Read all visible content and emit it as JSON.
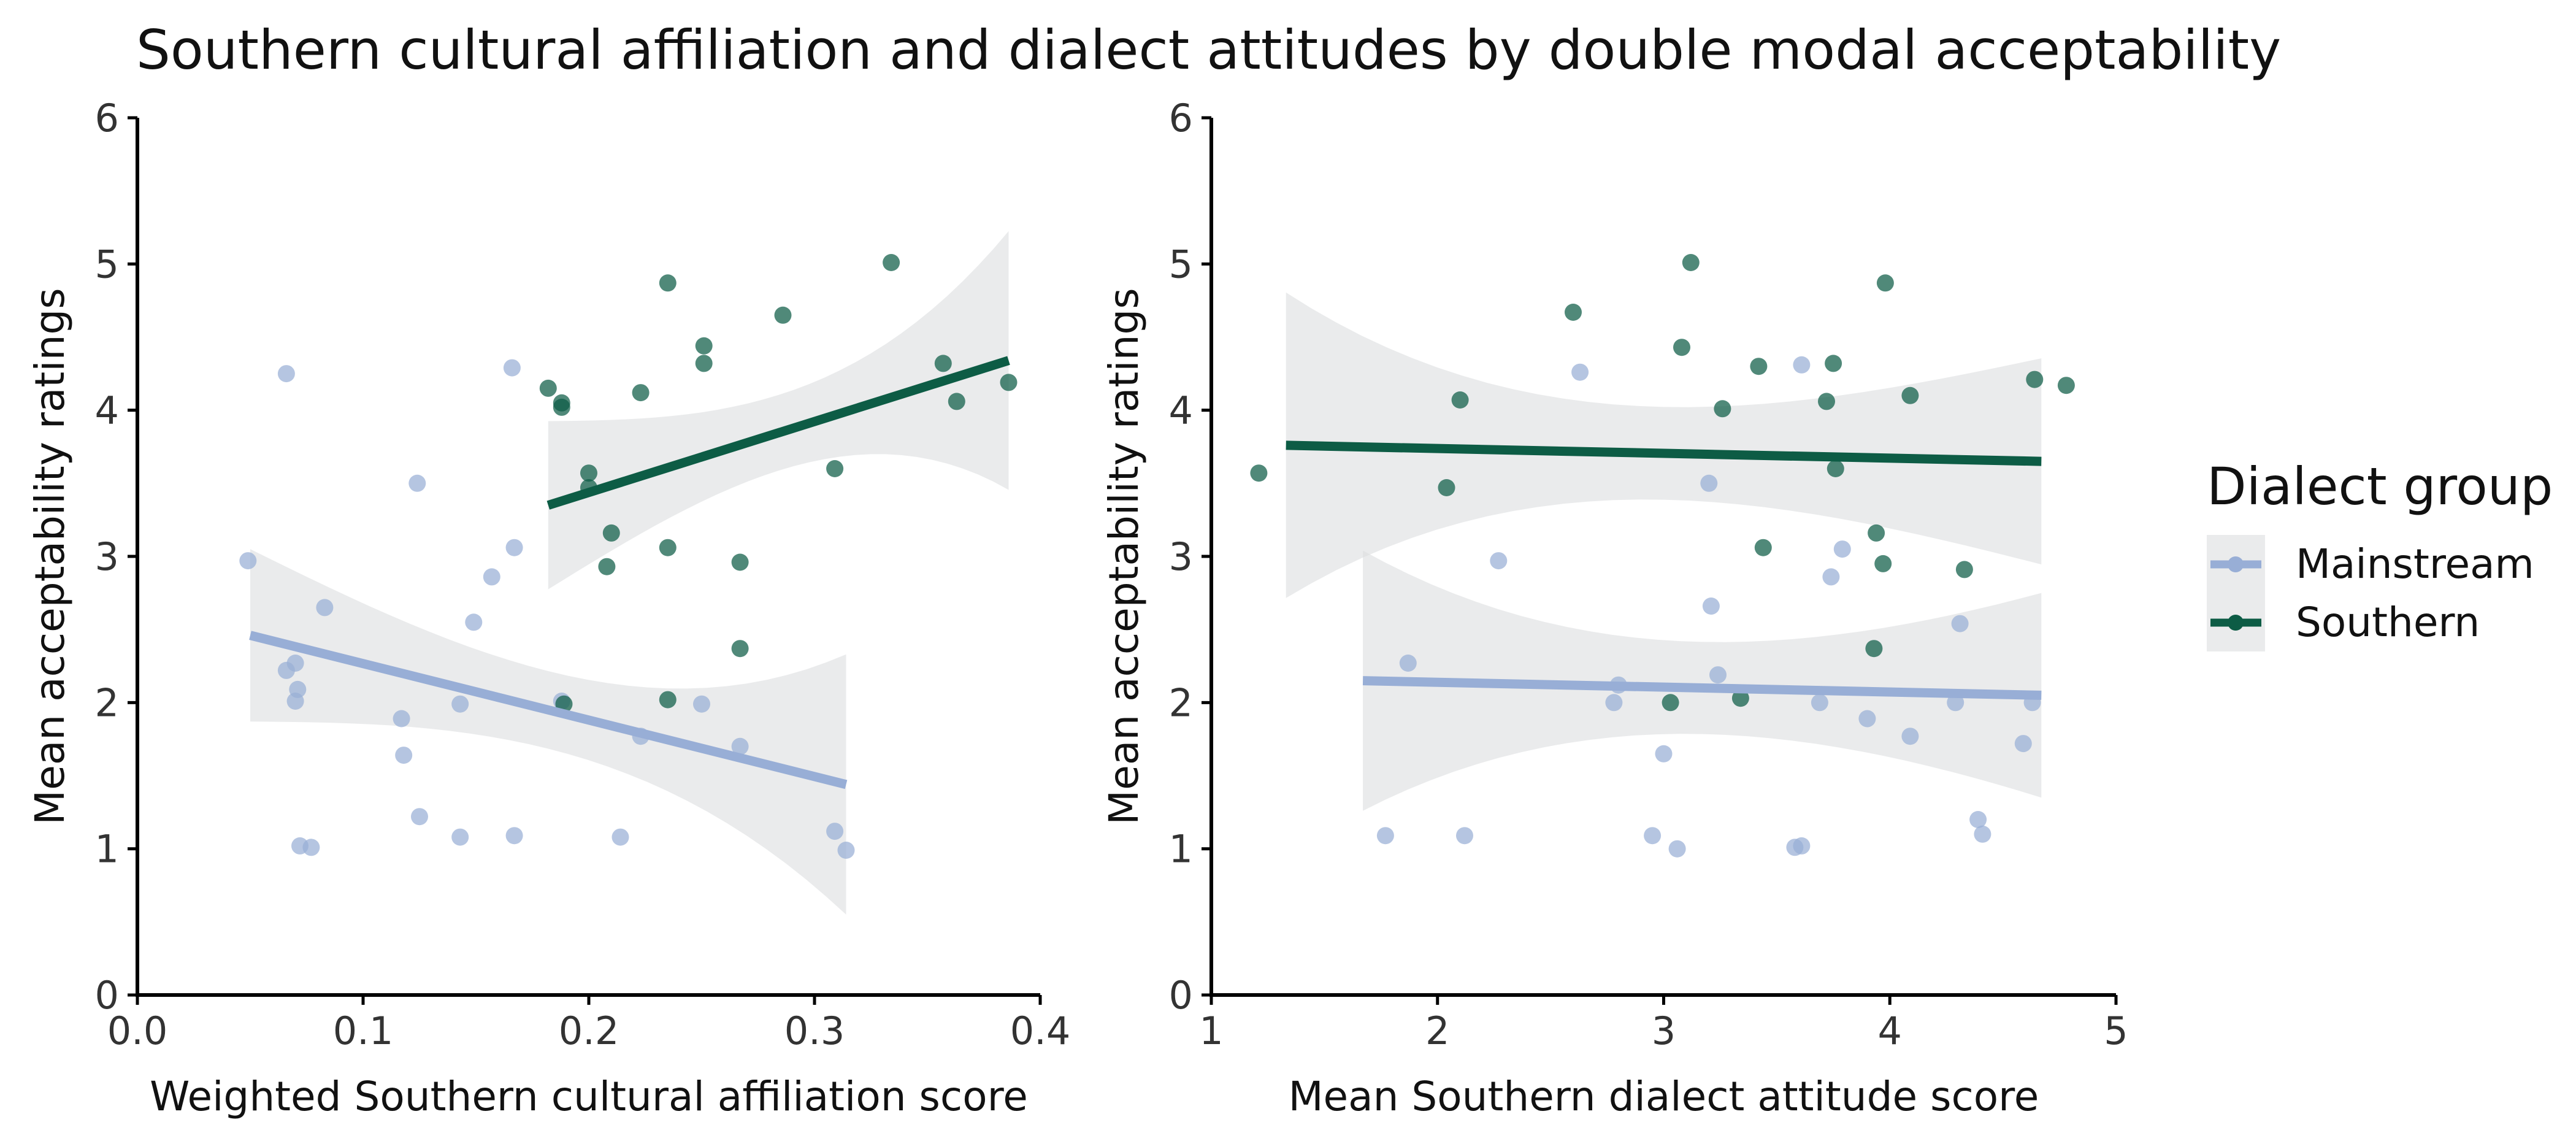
{
  "title": "Southern cultural affiliation and dialect attitudes by double modal acceptability",
  "legend": {
    "title": "Dialect group",
    "entries": [
      {
        "label": "Mainstream",
        "color": "#98aed6"
      },
      {
        "label": "Southern",
        "color": "#0d5c45"
      }
    ]
  },
  "chart_data": [
    {
      "type": "scatter",
      "xlabel": "Weighted Southern cultural affiliation score",
      "ylabel": "Mean acceptability ratings",
      "xlim": [
        0,
        0.4
      ],
      "ylim": [
        0,
        6
      ],
      "xticks": [
        "0.0",
        "0.1",
        "0.2",
        "0.3",
        "0.4"
      ],
      "yticks": [
        "0",
        "1",
        "2",
        "3",
        "4",
        "5",
        "6"
      ],
      "grid": false,
      "legend_position": "right",
      "series": [
        {
          "name": "Mainstream",
          "color": "#98aed6",
          "points": [
            [
              0.049,
              2.97
            ],
            [
              0.066,
              4.25
            ],
            [
              0.066,
              2.22
            ],
            [
              0.07,
              2.27
            ],
            [
              0.07,
              2.01
            ],
            [
              0.071,
              2.09
            ],
            [
              0.072,
              1.02
            ],
            [
              0.077,
              1.01
            ],
            [
              0.083,
              2.65
            ],
            [
              0.117,
              1.89
            ],
            [
              0.118,
              1.64
            ],
            [
              0.124,
              3.5
            ],
            [
              0.125,
              1.22
            ],
            [
              0.143,
              1.99
            ],
            [
              0.143,
              1.08
            ],
            [
              0.149,
              2.55
            ],
            [
              0.157,
              2.86
            ],
            [
              0.166,
              4.29
            ],
            [
              0.167,
              3.06
            ],
            [
              0.167,
              1.09
            ],
            [
              0.188,
              2.01
            ],
            [
              0.214,
              1.08
            ],
            [
              0.223,
              1.77
            ],
            [
              0.25,
              1.99
            ],
            [
              0.267,
              1.7
            ],
            [
              0.309,
              1.12
            ],
            [
              0.314,
              0.99
            ]
          ],
          "trend": {
            "x": [
              0.05,
              0.314
            ],
            "y": [
              2.46,
              1.44
            ],
            "ci_low": [
              1.87,
              0.55
            ],
            "ci_high": [
              3.05,
              2.33
            ]
          }
        },
        {
          "name": "Southern",
          "color": "#0d5c45",
          "points": [
            [
              0.182,
              4.15
            ],
            [
              0.188,
              4.05
            ],
            [
              0.188,
              4.02
            ],
            [
              0.189,
              1.99
            ],
            [
              0.2,
              3.57
            ],
            [
              0.2,
              3.47
            ],
            [
              0.208,
              2.93
            ],
            [
              0.21,
              3.16
            ],
            [
              0.223,
              4.12
            ],
            [
              0.235,
              4.87
            ],
            [
              0.235,
              3.06
            ],
            [
              0.235,
              2.02
            ],
            [
              0.251,
              4.44
            ],
            [
              0.251,
              4.32
            ],
            [
              0.267,
              2.96
            ],
            [
              0.267,
              2.37
            ],
            [
              0.286,
              4.65
            ],
            [
              0.309,
              3.6
            ],
            [
              0.334,
              5.01
            ],
            [
              0.357,
              4.32
            ],
            [
              0.363,
              4.06
            ],
            [
              0.386,
              4.19
            ]
          ],
          "trend": {
            "x": [
              0.182,
              0.386
            ],
            "y": [
              3.35,
              4.34
            ],
            "ci_low": [
              2.78,
              3.45
            ],
            "ci_high": [
              3.93,
              5.22
            ]
          }
        }
      ]
    },
    {
      "type": "scatter",
      "xlabel": "Mean Southern dialect attitude score",
      "ylabel": "Mean acceptability ratings",
      "xlim": [
        1,
        5
      ],
      "ylim": [
        0,
        6
      ],
      "xticks": [
        "1",
        "2",
        "3",
        "4",
        "5"
      ],
      "yticks": [
        "0",
        "1",
        "2",
        "3",
        "4",
        "5",
        "6"
      ],
      "grid": false,
      "legend_position": "right",
      "series": [
        {
          "name": "Mainstream",
          "color": "#98aed6",
          "points": [
            [
              1.77,
              1.09
            ],
            [
              1.87,
              2.27
            ],
            [
              2.12,
              1.09
            ],
            [
              2.27,
              2.97
            ],
            [
              2.63,
              4.26
            ],
            [
              2.78,
              2.0
            ],
            [
              2.8,
              2.12
            ],
            [
              2.95,
              1.09
            ],
            [
              3.0,
              1.65
            ],
            [
              3.06,
              1.0
            ],
            [
              3.2,
              3.5
            ],
            [
              3.21,
              2.66
            ],
            [
              3.24,
              2.19
            ],
            [
              3.58,
              1.01
            ],
            [
              3.61,
              1.02
            ],
            [
              3.61,
              4.31
            ],
            [
              3.69,
              2.0
            ],
            [
              3.74,
              2.86
            ],
            [
              3.79,
              3.05
            ],
            [
              3.9,
              1.89
            ],
            [
              4.09,
              1.77
            ],
            [
              4.29,
              2.0
            ],
            [
              4.31,
              2.54
            ],
            [
              4.39,
              1.2
            ],
            [
              4.41,
              1.1
            ],
            [
              4.59,
              1.72
            ],
            [
              4.63,
              2.0
            ]
          ],
          "trend": {
            "x": [
              1.67,
              4.67
            ],
            "y": [
              2.15,
              2.05
            ],
            "ci_low": [
              1.26,
              1.35
            ],
            "ci_high": [
              3.04,
              2.75
            ]
          }
        },
        {
          "name": "Southern",
          "color": "#0d5c45",
          "points": [
            [
              1.21,
              3.57
            ],
            [
              2.04,
              3.47
            ],
            [
              2.1,
              4.07
            ],
            [
              2.6,
              4.67
            ],
            [
              3.03,
              2.0
            ],
            [
              3.08,
              4.43
            ],
            [
              3.12,
              5.01
            ],
            [
              3.26,
              4.01
            ],
            [
              3.34,
              2.03
            ],
            [
              3.42,
              4.3
            ],
            [
              3.44,
              3.06
            ],
            [
              3.72,
              4.06
            ],
            [
              3.75,
              4.32
            ],
            [
              3.76,
              3.6
            ],
            [
              3.93,
              2.37
            ],
            [
              3.94,
              3.16
            ],
            [
              3.97,
              2.95
            ],
            [
              3.98,
              4.87
            ],
            [
              4.09,
              4.1
            ],
            [
              4.33,
              2.91
            ],
            [
              4.64,
              4.21
            ],
            [
              4.78,
              4.17
            ]
          ],
          "trend": {
            "x": [
              1.33,
              4.67
            ],
            "y": [
              3.76,
              3.65
            ],
            "ci_low": [
              2.72,
              2.95
            ],
            "ci_high": [
              4.81,
              4.36
            ]
          }
        }
      ]
    }
  ]
}
